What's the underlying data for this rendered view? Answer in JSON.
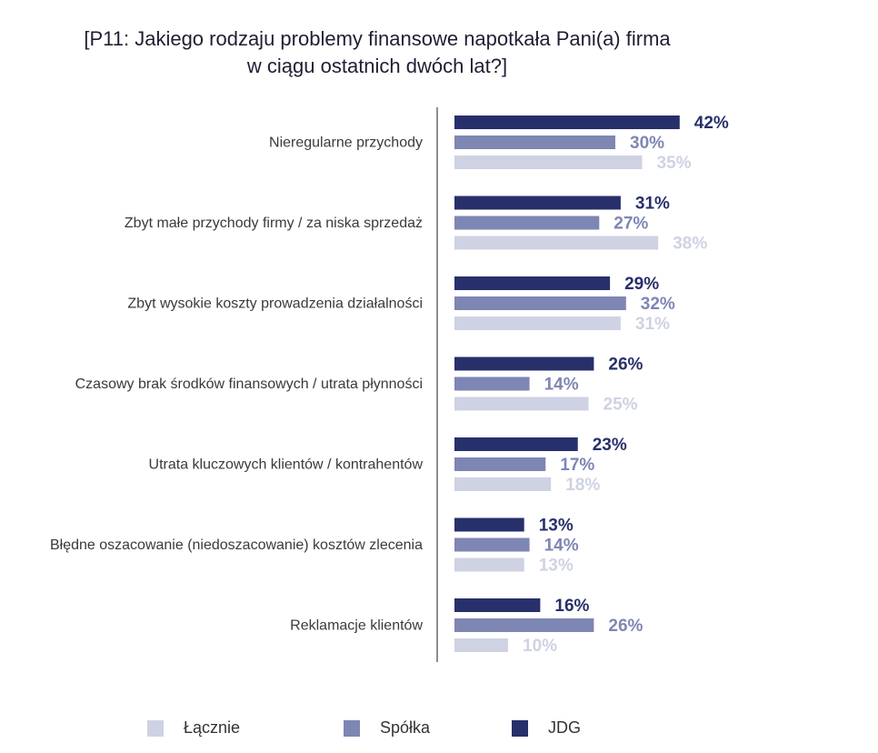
{
  "title": {
    "line1": "[P11: Jakiego rodzaju problemy finansowe napotkała Pani(a) firma",
    "line2": "w ciągu ostatnich dwóch lat?]"
  },
  "chart_data": {
    "type": "bar",
    "orientation": "horizontal",
    "categories": [
      "Nieregularne przychody",
      "Zbyt małe przychody firmy / za niska sprzedaż",
      "Zbyt wysokie koszty prowadzenia działalności",
      "Czasowy brak środków finansowych / utrata płynności",
      "Utrata kluczowych klientów / kontrahentów",
      "Błędne oszacowanie (niedoszacowanie) kosztów zlecenia",
      "Reklamacje klientów"
    ],
    "series": [
      {
        "name": "JDG",
        "color": "#27306b",
        "values": [
          42,
          31,
          29,
          26,
          23,
          13,
          16
        ]
      },
      {
        "name": "Spółka",
        "color": "#7e86b3",
        "values": [
          30,
          27,
          32,
          14,
          17,
          14,
          26
        ]
      },
      {
        "name": "Łącznie",
        "color": "#cfd2e3",
        "values": [
          35,
          38,
          31,
          25,
          18,
          13,
          10
        ]
      }
    ],
    "value_suffix": "%",
    "legend": {
      "position": "bottom",
      "order": [
        "Łącznie",
        "Spółka",
        "JDG"
      ]
    }
  }
}
